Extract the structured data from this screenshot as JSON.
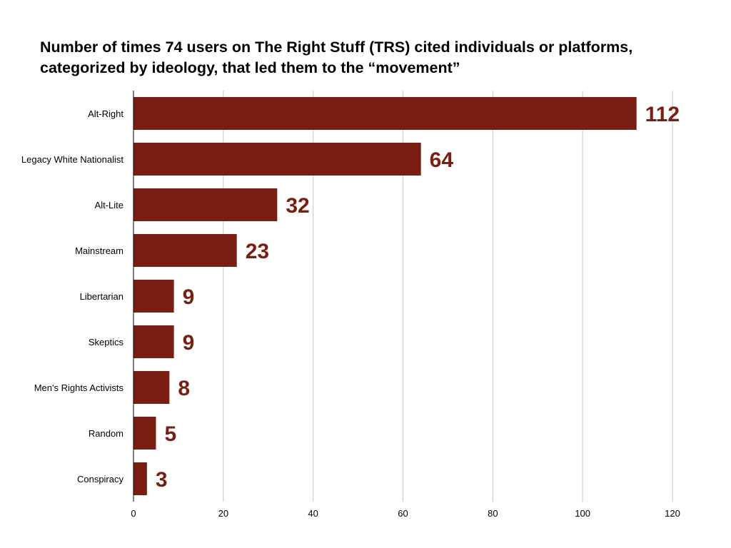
{
  "chart_data": {
    "type": "bar",
    "orientation": "horizontal",
    "title_lines": [
      "Number of times 74 users on The Right Stuff (TRS) cited individuals or platforms,",
      "categorized by ideology, that led them to the “movement”"
    ],
    "categories": [
      "Alt-Right",
      "Legacy White Nationalist",
      "Alt-Lite",
      "Mainstream",
      "Libertarian",
      "Skeptics",
      "Men's Rights Activists",
      "Random",
      "Conspiracy"
    ],
    "values": [
      112,
      64,
      32,
      23,
      9,
      9,
      8,
      5,
      3
    ],
    "xlim": [
      0,
      120
    ],
    "xticks": [
      "0",
      "20",
      "40",
      "60",
      "80",
      "100",
      "120"
    ],
    "grid": "vertical",
    "data_labels": true,
    "bar_color": "#7b1e12",
    "label_color": "#7b1e12",
    "grid_color": "#c8c8c8"
  }
}
